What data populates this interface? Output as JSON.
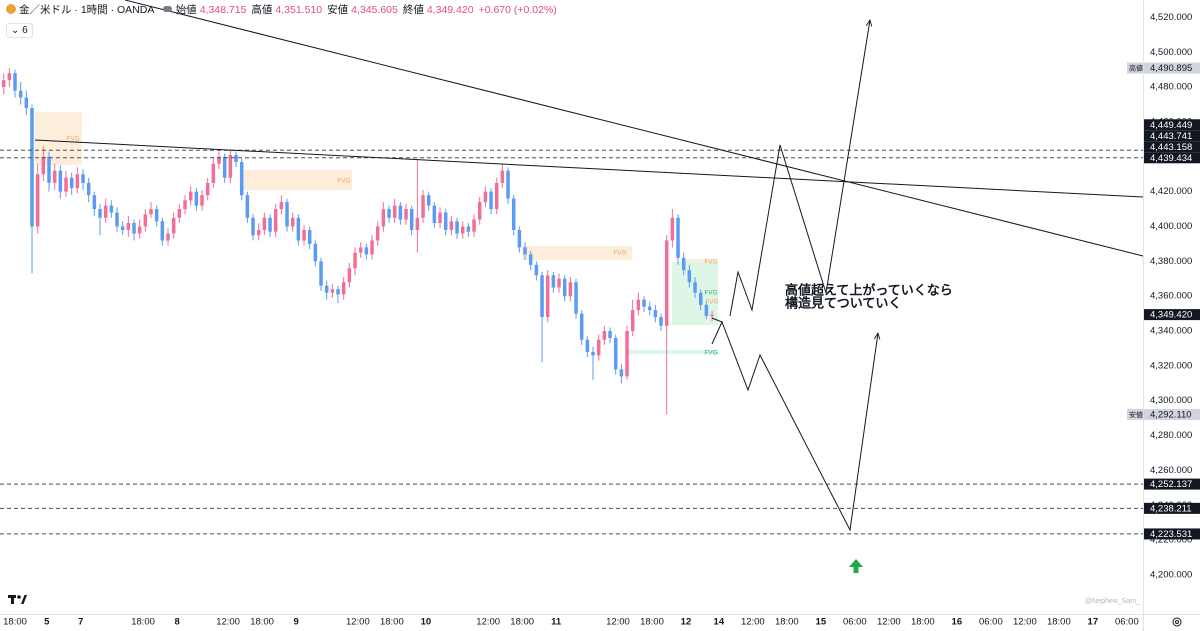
{
  "chart_data": {
    "type": "candlestick",
    "title": "金／米ドル · 1時間 · OANDA",
    "indicator_label": "6",
    "legend": [
      {
        "label": "始値",
        "value": "4,348.715"
      },
      {
        "label": "高値",
        "value": "4,351.510"
      },
      {
        "label": "安値",
        "value": "4,345.605"
      },
      {
        "label": "終値",
        "value": "4,349.420"
      }
    ],
    "change": "+0.670 (+0.02%)",
    "up_color": "#ef6f98",
    "down_color": "#5c9bf2",
    "x": [
      -2,
      -1,
      0,
      1,
      2,
      3,
      4,
      5,
      6,
      7,
      8,
      9,
      10,
      11,
      12,
      13,
      14,
      15,
      16,
      17,
      18,
      19,
      20,
      21,
      22,
      23,
      24,
      25,
      26,
      27,
      28,
      29,
      30,
      31,
      32,
      33,
      34,
      35,
      36,
      37,
      38,
      39,
      40,
      41,
      42,
      43,
      44,
      45,
      46,
      47,
      48,
      49,
      50,
      51,
      52,
      53,
      54,
      55,
      56,
      57,
      58,
      59,
      60,
      61,
      62,
      63,
      64,
      65,
      66,
      67,
      68,
      69,
      70,
      71,
      72,
      73,
      74,
      75,
      76,
      77,
      78,
      79,
      80,
      81,
      82,
      83,
      84,
      85,
      86,
      87,
      88,
      89,
      90,
      91,
      92,
      93,
      94,
      95,
      96,
      97,
      98,
      99,
      100,
      101,
      102,
      103,
      104,
      105,
      106,
      107,
      108,
      109,
      110,
      111,
      112,
      113,
      114,
      115,
      116,
      117,
      118,
      119,
      120,
      121,
      122,
      123
    ],
    "open": [
      4480,
      4484,
      4488,
      4478,
      4474,
      4468,
      4400,
      4430,
      4440,
      4425,
      4432,
      4420,
      4428,
      4422,
      4430,
      4425,
      4418,
      4410,
      4405,
      4412,
      4408,
      4400,
      4398,
      4402,
      4396,
      4400,
      4407,
      4410,
      4403,
      4392,
      4396,
      4405,
      4410,
      4415,
      4420,
      4412,
      4418,
      4425,
      4436,
      4440,
      4428,
      4441,
      4437,
      4418,
      4405,
      4395,
      4398,
      4405,
      4397,
      4410,
      4414,
      4400,
      4405,
      4392,
      4398,
      4390,
      4380,
      4366,
      4362,
      4364,
      4361,
      4368,
      4376,
      4385,
      4388,
      4384,
      4392,
      4400,
      4410,
      4405,
      4412,
      4404,
      4410,
      4398,
      4405,
      4418,
      4412,
      4402,
      4408,
      4398,
      4403,
      4396,
      4400,
      4397,
      4404,
      4414,
      4420,
      4410,
      4425,
      4432,
      4416,
      4398,
      4388,
      4384,
      4378,
      4372,
      4348,
      4372,
      4365,
      4370,
      4360,
      4368,
      4350,
      4335,
      4328,
      4326,
      4335,
      4340,
      4336,
      4318,
      4314,
      4340,
      4352,
      4358,
      4354,
      4352,
      4348,
      4343,
      4392,
      4405,
      4382,
      4375,
      4368,
      4362,
      4355,
      4348.715
    ],
    "high": [
      4488,
      4490.895,
      4490,
      4483,
      4478,
      4470,
      4436,
      4446,
      4443,
      4436,
      4435,
      4432,
      4431,
      4434,
      4433,
      4428,
      4420,
      4413,
      4416,
      4415,
      4411,
      4403,
      4406,
      4404,
      4404,
      4410,
      4414,
      4412,
      4405,
      4399,
      4408,
      4413,
      4418,
      4423,
      4422,
      4421,
      4428,
      4440,
      4443,
      4442,
      4444,
      4443,
      4439,
      4420,
      4407,
      4402,
      4408,
      4407,
      4413,
      4418,
      4416,
      4408,
      4407,
      4401,
      4400,
      4392,
      4382,
      4369,
      4367,
      4366,
      4371,
      4379,
      4388,
      4391,
      4390,
      4395,
      4403,
      4414,
      4412,
      4416,
      4414,
      4413,
      4412,
      4438,
      4421,
      4420,
      4414,
      4411,
      4410,
      4406,
      4405,
      4403,
      4402,
      4407,
      4417,
      4423,
      4422,
      4428,
      4436,
      4434,
      4418,
      4400,
      4391,
      4386,
      4380,
      4374,
      4375,
      4374,
      4373,
      4372,
      4371,
      4370,
      4352,
      4337,
      4331,
      4338,
      4343,
      4342,
      4338,
      4321,
      4343,
      4358,
      4362,
      4360,
      4357,
      4355,
      4350,
      4395,
      4410,
      4407,
      4385,
      4378,
      4371,
      4364,
      4357,
      4351.51
    ],
    "low": [
      4476,
      4480,
      4474,
      4470,
      4464,
      4373,
      4396,
      4426,
      4420,
      4421,
      4416,
      4417,
      4418,
      4419,
      4421,
      4414,
      4406,
      4395,
      4402,
      4405,
      4397,
      4395,
      4394,
      4392,
      4393,
      4397,
      4405,
      4400,
      4389,
      4389,
      4393,
      4402,
      4407,
      4412,
      4409,
      4409,
      4415,
      4422,
      4433,
      4425,
      4425,
      4434,
      4415,
      4402,
      4392,
      4392,
      4395,
      4394,
      4394,
      4407,
      4397,
      4397,
      4389,
      4389,
      4387,
      4377,
      4363,
      4358,
      4359,
      4356,
      4358,
      4365,
      4372,
      4382,
      4381,
      4381,
      4389,
      4397,
      4402,
      4402,
      4401,
      4401,
      4395,
      4385,
      4402,
      4409,
      4399,
      4399,
      4395,
      4395,
      4393,
      4393,
      4394,
      4394,
      4401,
      4411,
      4407,
      4407,
      4422,
      4413,
      4395,
      4385,
      4381,
      4375,
      4369,
      4322,
      4345,
      4362,
      4362,
      4357,
      4357,
      4347,
      4332,
      4325,
      4312,
      4323,
      4332,
      4333,
      4315,
      4310,
      4312,
      4337,
      4349,
      4351,
      4349,
      4345,
      4340,
      4292.11,
      4388,
      4378,
      4372,
      4365,
      4359,
      4352,
      4347,
      4345.605
    ],
    "close": [
      4484,
      4488,
      4478,
      4474,
      4468,
      4400,
      4430,
      4440,
      4425,
      4432,
      4420,
      4428,
      4422,
      4430,
      4425,
      4418,
      4410,
      4405,
      4412,
      4408,
      4400,
      4398,
      4402,
      4396,
      4400,
      4407,
      4410,
      4403,
      4392,
      4396,
      4405,
      4410,
      4415,
      4420,
      4412,
      4418,
      4425,
      4436,
      4440,
      4428,
      4441,
      4437,
      4418,
      4405,
      4395,
      4398,
      4405,
      4397,
      4410,
      4414,
      4400,
      4405,
      4392,
      4398,
      4390,
      4380,
      4366,
      4362,
      4364,
      4361,
      4368,
      4376,
      4385,
      4388,
      4384,
      4392,
      4400,
      4410,
      4405,
      4412,
      4404,
      4410,
      4398,
      4405,
      4418,
      4412,
      4402,
      4408,
      4398,
      4403,
      4396,
      4400,
      4397,
      4404,
      4414,
      4420,
      4410,
      4425,
      4432,
      4416,
      4398,
      4388,
      4384,
      4378,
      4372,
      4348,
      4372,
      4365,
      4370,
      4360,
      4368,
      4350,
      4335,
      4328,
      4326,
      4335,
      4340,
      4336,
      4318,
      4314,
      4340,
      4352,
      4358,
      4354,
      4352,
      4348,
      4343,
      4392,
      4405,
      4382,
      4375,
      4368,
      4362,
      4355,
      4348.715,
      4349.42
    ],
    "xlim": [
      -2.65,
      199.05
    ],
    "xticks": [
      {
        "value": 0,
        "label": "18:00"
      },
      {
        "value": 5.6,
        "label": "5"
      },
      {
        "value": 11.6,
        "label": "7"
      },
      {
        "value": 22.6,
        "label": "18:00"
      },
      {
        "value": 28.6,
        "label": "8"
      },
      {
        "value": 37.6,
        "label": "12:00"
      },
      {
        "value": 43.6,
        "label": "18:00"
      },
      {
        "value": 49.6,
        "label": "9"
      },
      {
        "value": 60.5,
        "label": "12:00"
      },
      {
        "value": 66.5,
        "label": "18:00"
      },
      {
        "value": 72.5,
        "label": "10"
      },
      {
        "value": 83.5,
        "label": "12:00"
      },
      {
        "value": 89.5,
        "label": "18:00"
      },
      {
        "value": 95.5,
        "label": "11"
      },
      {
        "value": 106.4,
        "label": "12:00"
      },
      {
        "value": 112.4,
        "label": "18:00"
      },
      {
        "value": 118.4,
        "label": "12"
      },
      {
        "value": 124.2,
        "label": "14"
      },
      {
        "value": 130.2,
        "label": "12:00"
      },
      {
        "value": 136.2,
        "label": "18:00"
      },
      {
        "value": 142.2,
        "label": "15"
      },
      {
        "value": 148.2,
        "label": "06:00"
      },
      {
        "value": 154.2,
        "label": "12:00"
      },
      {
        "value": 160.2,
        "label": "18:00"
      },
      {
        "value": 166.2,
        "label": "16"
      },
      {
        "value": 172.2,
        "label": "06:00"
      },
      {
        "value": 178.2,
        "label": "12:00"
      },
      {
        "value": 184.2,
        "label": "18:00"
      },
      {
        "value": 190.2,
        "label": "17"
      },
      {
        "value": 196.2,
        "label": "06:00"
      }
    ],
    "ylim": [
      4177,
      4530
    ],
    "yticks": [
      {
        "value": 4200,
        "label": "4,200.000"
      },
      {
        "value": 4220,
        "label": "4,220.000"
      },
      {
        "value": 4240,
        "label": "4,240.000"
      },
      {
        "value": 4260,
        "label": "4,260.000"
      },
      {
        "value": 4280,
        "label": "4,280.000"
      },
      {
        "value": 4300,
        "label": "4,300.000"
      },
      {
        "value": 4320,
        "label": "4,320.000"
      },
      {
        "value": 4340,
        "label": "4,340.000"
      },
      {
        "value": 4360,
        "label": "4,360.000"
      },
      {
        "value": 4380,
        "label": "4,380.000"
      },
      {
        "value": 4400,
        "label": "4,400.000"
      },
      {
        "value": 4420,
        "label": "4,420.000"
      },
      {
        "value": 4440,
        "label": "4,440.000"
      },
      {
        "value": 4460,
        "label": "4,460.000"
      },
      {
        "value": 4480,
        "label": "4,480.000"
      },
      {
        "value": 4500,
        "label": "4,500.000"
      },
      {
        "value": 4520,
        "label": "4,520.000"
      }
    ],
    "grid": false,
    "price_lines": [
      {
        "value": 4449.449,
        "label": "4,449.449",
        "dashed": false
      },
      {
        "value": 4443.741,
        "label": "4,443.741",
        "dashed": true
      },
      {
        "value": 4443.158,
        "label": "4,443.158",
        "dashed": false
      },
      {
        "value": 4439.434,
        "label": "4,439.434",
        "dashed": true
      },
      {
        "value": 4349.42,
        "label": "4,349.420",
        "dashed": false
      },
      {
        "value": 4252.137,
        "label": "4,252.137",
        "dashed": true
      },
      {
        "value": 4238.211,
        "label": "4,238.211",
        "dashed": true
      },
      {
        "value": 4223.531,
        "label": "4,223.531",
        "dashed": true
      }
    ],
    "extreme_labels": [
      {
        "tag": "高値",
        "value": 4490.895,
        "label": "4,490.895"
      },
      {
        "tag": "安値",
        "value": 4292.11,
        "label": "4,292.110"
      }
    ],
    "annotation": [
      "高値超えて上がっていくなら",
      "構造見てついていく"
    ],
    "fvg_labels": [
      "FVG",
      "FVG",
      "FVG",
      "FVG",
      "FVG",
      "FVG",
      "FVG"
    ],
    "watermark": "@Nephew_Sam_"
  }
}
